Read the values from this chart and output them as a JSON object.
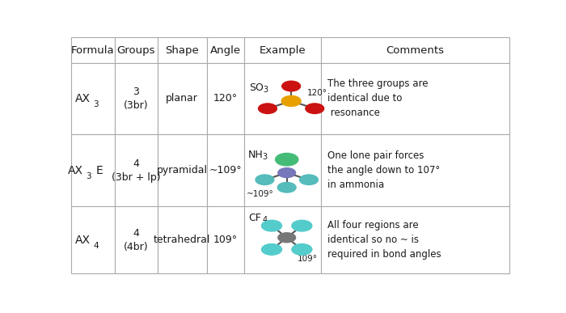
{
  "headers": [
    "Formula",
    "Groups",
    "Shape",
    "Angle",
    "Example",
    "Comments"
  ],
  "rows": [
    {
      "formula": "AX3",
      "groups": "3\n(3br)",
      "shape": "planar",
      "angle": "120°",
      "comment": "The three groups are\nidentical due to\n resonance"
    },
    {
      "formula": "AX3E",
      "groups": "4\n(3br + lp)",
      "shape": "pyramidal",
      "angle": "~109°",
      "comment": "One lone pair forces\nthe angle down to 107°\nin ammonia"
    },
    {
      "formula": "AX4",
      "groups": "4\n(4br)",
      "shape": "tetrahedral",
      "angle": "109°",
      "comment": "All four regions are\nidentical so no ~ is\nrequired in bond angles"
    }
  ],
  "bg_color": "#ffffff",
  "grid_color": "#aaaaaa",
  "text_color": "#1a1a1a",
  "so3_S_color": "#e8a000",
  "so3_O_color": "#cc1111",
  "nh3_N_color": "#7777bb",
  "nh3_H_color": "#55bbbb",
  "nh3_lp_color": "#44bb77",
  "cf4_C_color": "#777777",
  "cf4_F_color": "#55cccc",
  "bond_color": "#555555"
}
